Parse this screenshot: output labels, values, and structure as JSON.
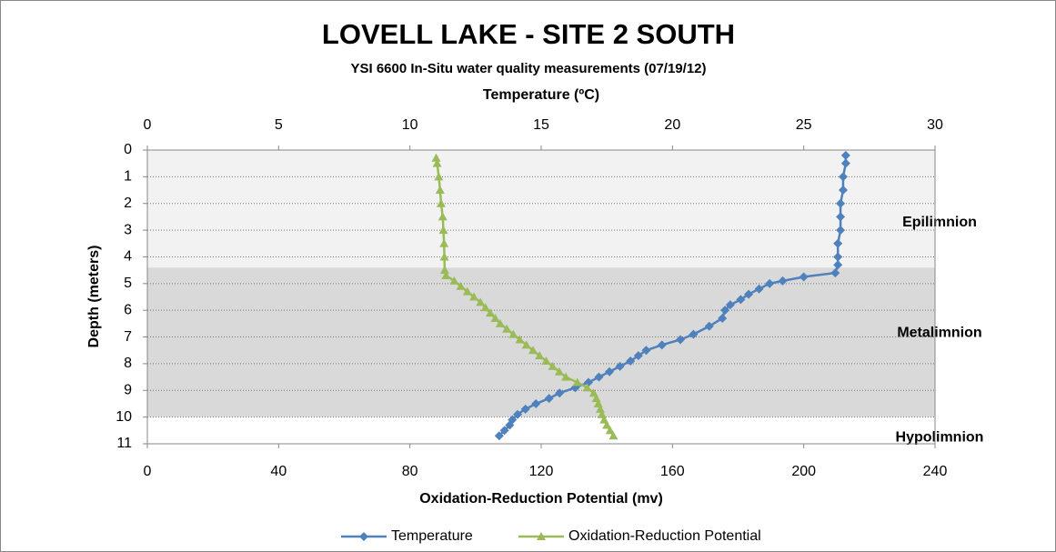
{
  "chart_data": {
    "type": "line",
    "title": "LOVELL LAKE  - SITE 2 SOUTH",
    "subtitle": "YSI 6600 In-Situ water quality measurements (07/19/12)",
    "x2_label": "Temperature (ºC)",
    "x_label": "Oxidation-Reduction Potential (mv)",
    "y_label": "Depth (meters)",
    "xlim": [
      0,
      240
    ],
    "xticks": [
      0,
      40,
      80,
      120,
      160,
      200,
      240
    ],
    "x2lim": [
      0,
      30
    ],
    "x2ticks": [
      0,
      5,
      10,
      15,
      20,
      25,
      30
    ],
    "ylim": [
      0,
      11
    ],
    "yticks": [
      0,
      1,
      2,
      3,
      4,
      5,
      6,
      7,
      8,
      9,
      10,
      11
    ],
    "y_inverted": true,
    "grid": true,
    "legend": "bottom",
    "layers": [
      {
        "label": "Epilimnion",
        "top": 0,
        "bottom": 4.4,
        "color": "#f2f2f2"
      },
      {
        "label": "Metalimnion",
        "top": 4.4,
        "bottom": 10,
        "color": "#d9d9d9"
      },
      {
        "label": "Hypolimnion",
        "top": 10,
        "bottom": 11,
        "color": "#ffffff"
      }
    ],
    "series": [
      {
        "name": "Temperature",
        "color": "#4f81bd",
        "marker": "diamond",
        "axis": "x2",
        "depth": [
          0.2,
          0.5,
          1.0,
          1.5,
          2.0,
          2.5,
          3.0,
          3.5,
          4.0,
          4.3,
          4.6,
          4.75,
          4.9,
          5.0,
          5.2,
          5.4,
          5.6,
          5.8,
          6.0,
          6.3,
          6.6,
          6.9,
          7.1,
          7.3,
          7.5,
          7.7,
          7.9,
          8.1,
          8.3,
          8.5,
          8.7,
          8.9,
          9.1,
          9.3,
          9.5,
          9.7,
          9.9,
          10.1,
          10.3,
          10.5,
          10.7
        ],
        "values": [
          26.6,
          26.6,
          26.5,
          26.5,
          26.4,
          26.4,
          26.4,
          26.3,
          26.3,
          26.3,
          26.2,
          25.0,
          24.2,
          23.7,
          23.3,
          22.9,
          22.6,
          22.2,
          22.0,
          21.9,
          21.4,
          20.8,
          20.3,
          19.6,
          19.0,
          18.7,
          18.4,
          18.0,
          17.6,
          17.2,
          16.8,
          16.3,
          15.7,
          15.3,
          14.8,
          14.4,
          14.1,
          13.9,
          13.8,
          13.6,
          13.4
        ]
      },
      {
        "name": "Oxidation-Reduction Potential",
        "color": "#9bbb59",
        "marker": "triangle",
        "axis": "x",
        "depth": [
          0.3,
          0.5,
          1.0,
          1.5,
          2.0,
          2.5,
          3.0,
          3.5,
          4.0,
          4.5,
          4.7,
          4.9,
          5.1,
          5.3,
          5.5,
          5.7,
          5.9,
          6.1,
          6.3,
          6.5,
          6.7,
          6.9,
          7.1,
          7.3,
          7.5,
          7.7,
          7.9,
          8.1,
          8.3,
          8.5,
          8.7,
          8.9,
          9.1,
          9.3,
          9.5,
          9.7,
          9.9,
          10.1,
          10.3,
          10.5,
          10.7
        ],
        "values": [
          88,
          88.3,
          88.8,
          89.2,
          89.5,
          90,
          90.2,
          90.4,
          90.5,
          90.6,
          91,
          93.5,
          95.5,
          97.5,
          99.5,
          101.5,
          103,
          104.5,
          106,
          107.5,
          109.5,
          111.5,
          113.5,
          115.5,
          117.5,
          119.5,
          121.5,
          123.5,
          125.5,
          127.5,
          131,
          134,
          136,
          136.8,
          137.4,
          138,
          138.5,
          139.2,
          140,
          141,
          142
        ]
      }
    ]
  }
}
